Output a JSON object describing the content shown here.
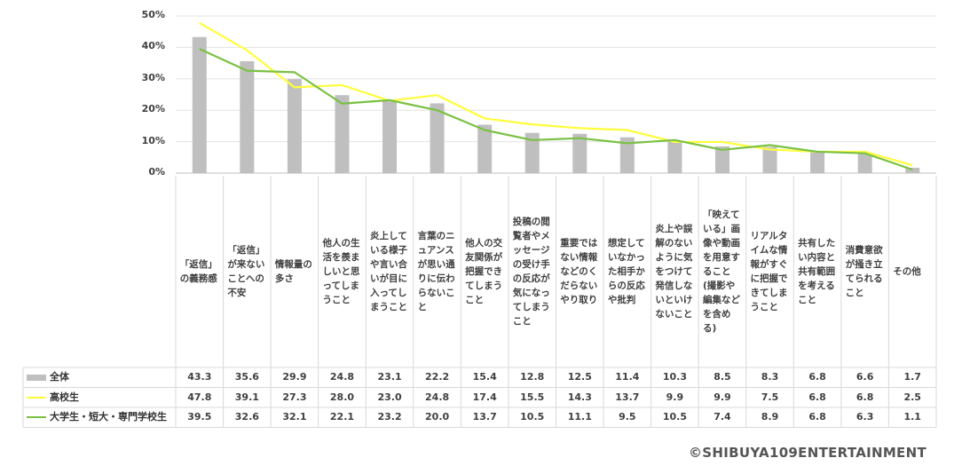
{
  "chart_data": {
    "type": "bar",
    "categories": [
      "「返信」の義務感",
      "「返信」が来ないことへの不安",
      "情報量の多さ",
      "他人の生活を羨ましいと思ってしまうこと",
      "炎上している様子や言い合いが目に入ってしまうこと",
      "言葉のニュアンスが思い通りに伝わらないこと",
      "他人の交友関係が把握できてしまうこと",
      "投稿の閲覧者やメッセージの受け手の反応が気になってしまうこと",
      "重要ではない情報などのくだらないやり取り",
      "想定していなかった相手からの反応や批判",
      "炎上や誤解のないように気をつけて発信しないといけないこと",
      "「映えている」画像や動画を用意すること(撮影や編集などを含める)",
      "リアルタイムな情報がすぐに把握できてしまうこと",
      "共有したい内容と共有範囲を考えること",
      "消費意欲が掻き立てられること",
      "その他"
    ],
    "series": [
      {
        "name": "全体",
        "type": "bar",
        "color": "#bfbfbf",
        "values": [
          43.3,
          35.6,
          29.9,
          24.8,
          23.1,
          22.2,
          15.4,
          12.8,
          12.5,
          11.4,
          10.3,
          8.5,
          8.3,
          6.8,
          6.6,
          1.7
        ]
      },
      {
        "name": "高校生",
        "type": "line",
        "color": "#ffff3a",
        "values": [
          47.8,
          39.1,
          27.3,
          28.0,
          23.0,
          24.8,
          17.4,
          15.5,
          14.3,
          13.7,
          9.9,
          9.9,
          7.5,
          6.8,
          6.8,
          2.5
        ]
      },
      {
        "name": "大学生・短大・専門学校生",
        "type": "line",
        "color": "#7ac143",
        "values": [
          39.5,
          32.6,
          32.1,
          22.1,
          23.2,
          20.0,
          13.7,
          10.5,
          11.1,
          9.5,
          10.5,
          7.4,
          8.9,
          6.8,
          6.3,
          1.1
        ]
      }
    ],
    "y_ticks": [
      "0%",
      "10%",
      "20%",
      "30%",
      "40%",
      "50%"
    ],
    "ylim": [
      0,
      50
    ],
    "grid": true
  },
  "copyright": "©SHIBUYA109ENTERTAINMENT"
}
